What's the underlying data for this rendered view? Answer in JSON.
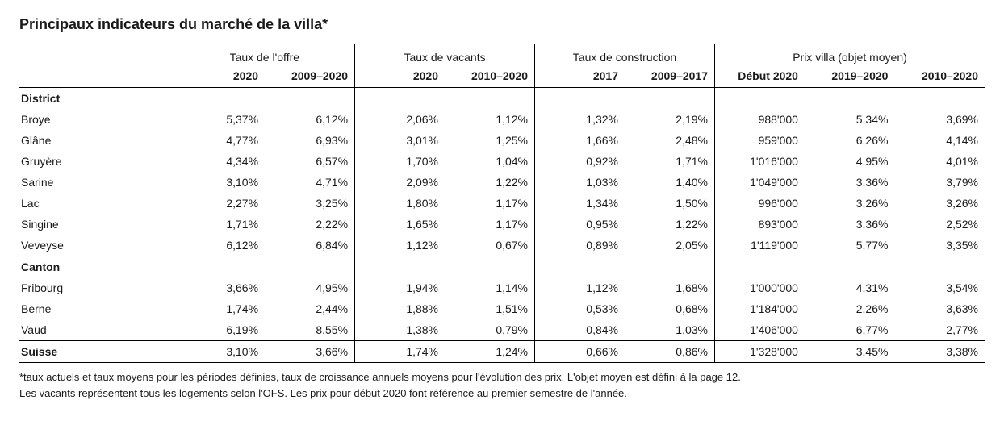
{
  "title": "Principaux indicateurs du marché de la villa*",
  "groups": [
    {
      "label": "Taux de l'offre",
      "sub": [
        "2020",
        "2009–2020"
      ]
    },
    {
      "label": "Taux de vacants",
      "sub": [
        "2020",
        "2010–2020"
      ]
    },
    {
      "label": "Taux de construction",
      "sub": [
        "2017",
        "2009–2017"
      ]
    },
    {
      "label": "Prix villa (objet moyen)",
      "sub": [
        "Début 2020",
        "2019–2020",
        "2010–2020"
      ]
    }
  ],
  "sections": {
    "district": {
      "label": "District",
      "rows": [
        {
          "label": "Broye",
          "v": [
            "5,37%",
            "6,12%",
            "2,06%",
            "1,12%",
            "1,32%",
            "2,19%",
            "988'000",
            "5,34%",
            "3,69%"
          ]
        },
        {
          "label": "Glâne",
          "v": [
            "4,77%",
            "6,93%",
            "3,01%",
            "1,25%",
            "1,66%",
            "2,48%",
            "959'000",
            "6,26%",
            "4,14%"
          ]
        },
        {
          "label": "Gruyère",
          "v": [
            "4,34%",
            "6,57%",
            "1,70%",
            "1,04%",
            "0,92%",
            "1,71%",
            "1'016'000",
            "4,95%",
            "4,01%"
          ]
        },
        {
          "label": "Sarine",
          "v": [
            "3,10%",
            "4,71%",
            "2,09%",
            "1,22%",
            "1,03%",
            "1,40%",
            "1'049'000",
            "3,36%",
            "3,79%"
          ]
        },
        {
          "label": "Lac",
          "v": [
            "2,27%",
            "3,25%",
            "1,80%",
            "1,17%",
            "1,34%",
            "1,50%",
            "996'000",
            "3,26%",
            "3,26%"
          ]
        },
        {
          "label": "Singine",
          "v": [
            "1,71%",
            "2,22%",
            "1,65%",
            "1,17%",
            "0,95%",
            "1,22%",
            "893'000",
            "3,36%",
            "2,52%"
          ]
        },
        {
          "label": "Veveyse",
          "v": [
            "6,12%",
            "6,84%",
            "1,12%",
            "0,67%",
            "0,89%",
            "2,05%",
            "1'119'000",
            "5,77%",
            "3,35%"
          ]
        }
      ]
    },
    "canton": {
      "label": "Canton",
      "rows": [
        {
          "label": "Fribourg",
          "v": [
            "3,66%",
            "4,95%",
            "1,94%",
            "1,14%",
            "1,12%",
            "1,68%",
            "1'000'000",
            "4,31%",
            "3,54%"
          ]
        },
        {
          "label": "Berne",
          "v": [
            "1,74%",
            "2,44%",
            "1,88%",
            "1,51%",
            "0,53%",
            "0,68%",
            "1'184'000",
            "2,26%",
            "3,63%"
          ]
        },
        {
          "label": "Vaud",
          "v": [
            "6,19%",
            "8,55%",
            "1,38%",
            "0,79%",
            "0,84%",
            "1,03%",
            "1'406'000",
            "6,77%",
            "2,77%"
          ]
        }
      ]
    },
    "suisse": {
      "label": "Suisse",
      "v": [
        "3,10%",
        "3,66%",
        "1,74%",
        "1,24%",
        "0,66%",
        "0,86%",
        "1'328'000",
        "3,45%",
        "3,38%"
      ]
    }
  },
  "footnote_line1": "*taux actuels et taux moyens pour les périodes définies, taux de croissance annuels moyens pour l'évolution des prix. L'objet moyen est défini à la page 12.",
  "footnote_line2": "Les vacants représentent tous les logements selon l'OFS. Les prix pour début 2020 font référence au premier semestre de l'année.",
  "style": {
    "vsep_cols": [
      3,
      5,
      7
    ],
    "text_color": "#1a1a1a",
    "background": "#ffffff",
    "rule_color": "#000000"
  }
}
